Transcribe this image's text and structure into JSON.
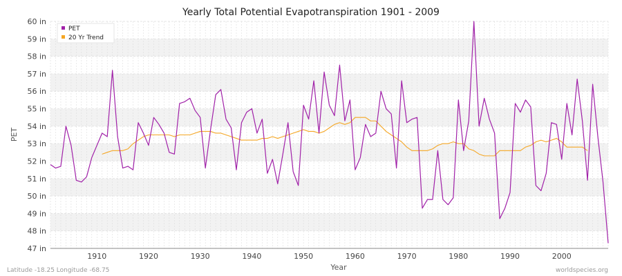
{
  "chart_data": {
    "type": "line",
    "title": "Yearly Total Potential Evapotranspiration 1901 - 2009",
    "xlabel": "Year",
    "ylabel": "PET",
    "xlim": [
      1901,
      2009
    ],
    "ylim": [
      47,
      60
    ],
    "x_ticks": [
      1910,
      1920,
      1930,
      1940,
      1950,
      1960,
      1970,
      1980,
      1990,
      2000
    ],
    "y_ticks": [
      47,
      48,
      49,
      50,
      51,
      52,
      53,
      54,
      55,
      56,
      57,
      58,
      59,
      60
    ],
    "y_tick_labels": [
      "47 in",
      "48 in",
      "49 in",
      "50 in",
      "51 in",
      "52 in",
      "53 in",
      "54 in",
      "55 in",
      "56 in",
      "57 in",
      "58 in",
      "59 in",
      "60 in"
    ],
    "grid": true,
    "legend_position": "top-left",
    "series": [
      {
        "name": "PET",
        "color": "#a020a8",
        "x_start": 1901,
        "values": [
          51.8,
          51.6,
          51.7,
          54.0,
          52.9,
          50.9,
          50.8,
          51.1,
          52.2,
          52.9,
          53.6,
          53.4,
          57.2,
          53.4,
          51.6,
          51.7,
          51.5,
          54.2,
          53.6,
          52.9,
          54.5,
          54.1,
          53.6,
          52.5,
          52.4,
          55.3,
          55.4,
          55.6,
          54.9,
          54.5,
          51.6,
          53.8,
          55.8,
          56.1,
          54.4,
          53.9,
          51.5,
          54.2,
          54.8,
          55.0,
          53.6,
          54.4,
          51.3,
          52.1,
          50.7,
          52.4,
          54.2,
          51.4,
          50.6,
          55.2,
          54.4,
          56.6,
          53.6,
          57.1,
          55.2,
          54.6,
          57.5,
          54.3,
          55.5,
          51.5,
          52.2,
          54.1,
          53.4,
          53.6,
          56.0,
          55.0,
          54.7,
          51.6,
          56.6,
          54.2,
          54.4,
          54.5,
          49.3,
          49.8,
          49.8,
          52.6,
          49.8,
          49.5,
          49.9,
          55.5,
          52.6,
          54.3,
          60.0,
          54.0,
          55.6,
          54.4,
          53.6,
          48.7,
          49.3,
          50.2,
          55.3,
          54.8,
          55.5,
          55.1,
          50.6,
          50.3,
          51.3,
          54.2,
          54.1,
          52.1,
          55.3,
          53.5,
          56.7,
          54.3,
          50.9,
          56.4,
          53.4,
          50.8,
          47.3
        ]
      },
      {
        "name": "20 Yr Trend",
        "color": "#f5a623",
        "x_start": 1911,
        "values": [
          52.4,
          52.5,
          52.6,
          52.6,
          52.6,
          52.7,
          53.0,
          53.2,
          53.4,
          53.5,
          53.5,
          53.5,
          53.5,
          53.5,
          53.4,
          53.5,
          53.5,
          53.5,
          53.6,
          53.7,
          53.7,
          53.7,
          53.6,
          53.6,
          53.5,
          53.4,
          53.3,
          53.2,
          53.2,
          53.2,
          53.2,
          53.3,
          53.3,
          53.4,
          53.3,
          53.4,
          53.5,
          53.6,
          53.7,
          53.8,
          53.7,
          53.7,
          53.6,
          53.7,
          53.9,
          54.1,
          54.2,
          54.1,
          54.2,
          54.5,
          54.5,
          54.5,
          54.3,
          54.3,
          54.0,
          53.7,
          53.5,
          53.3,
          53.1,
          52.8,
          52.6,
          52.6,
          52.6,
          52.6,
          52.7,
          52.9,
          53.0,
          53.0,
          53.1,
          53.0,
          53.0,
          52.7,
          52.6,
          52.4,
          52.3,
          52.3,
          52.3,
          52.6,
          52.6,
          52.6,
          52.6,
          52.6,
          52.8,
          52.9,
          53.1,
          53.2,
          53.1,
          53.2,
          53.3,
          53.1,
          52.8,
          52.8,
          52.8,
          52.8,
          52.6
        ]
      }
    ]
  },
  "footer": {
    "coordinates": "Latitude -18.25 Longitude -68.75",
    "source": "worldspecies.org"
  },
  "colors": {
    "grid_band": "#f2f2f2",
    "grid_line": "#dcdcdc",
    "axis": "#888888"
  }
}
